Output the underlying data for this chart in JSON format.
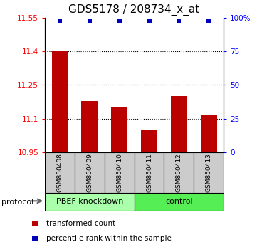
{
  "title": "GDS5178 / 208734_x_at",
  "samples": [
    "GSM850408",
    "GSM850409",
    "GSM850410",
    "GSM850411",
    "GSM850412",
    "GSM850413"
  ],
  "bar_values": [
    11.4,
    11.18,
    11.15,
    11.05,
    11.2,
    11.12
  ],
  "percentile_values": [
    97,
    97,
    97,
    97,
    97,
    97
  ],
  "ylim_left": [
    10.95,
    11.55
  ],
  "ylim_right": [
    0,
    100
  ],
  "yticks_left": [
    10.95,
    11.1,
    11.25,
    11.4,
    11.55
  ],
  "yticks_right": [
    0,
    25,
    50,
    75,
    100
  ],
  "bar_color": "#bb0000",
  "dot_color": "#0000bb",
  "bar_width": 0.55,
  "groups": [
    {
      "label": "PBEF knockdown",
      "indices": [
        0,
        1,
        2
      ],
      "color": "#aaffaa"
    },
    {
      "label": "control",
      "indices": [
        3,
        4,
        5
      ],
      "color": "#55ee55"
    }
  ],
  "protocol_label": "protocol",
  "legend_items": [
    {
      "color": "#bb0000",
      "label": "transformed count"
    },
    {
      "color": "#0000bb",
      "label": "percentile rank within the sample"
    }
  ],
  "background_color": "#ffffff",
  "title_fontsize": 11,
  "tick_fontsize": 7.5,
  "sample_box_color": "#cccccc",
  "sample_box_edge": "#888888"
}
